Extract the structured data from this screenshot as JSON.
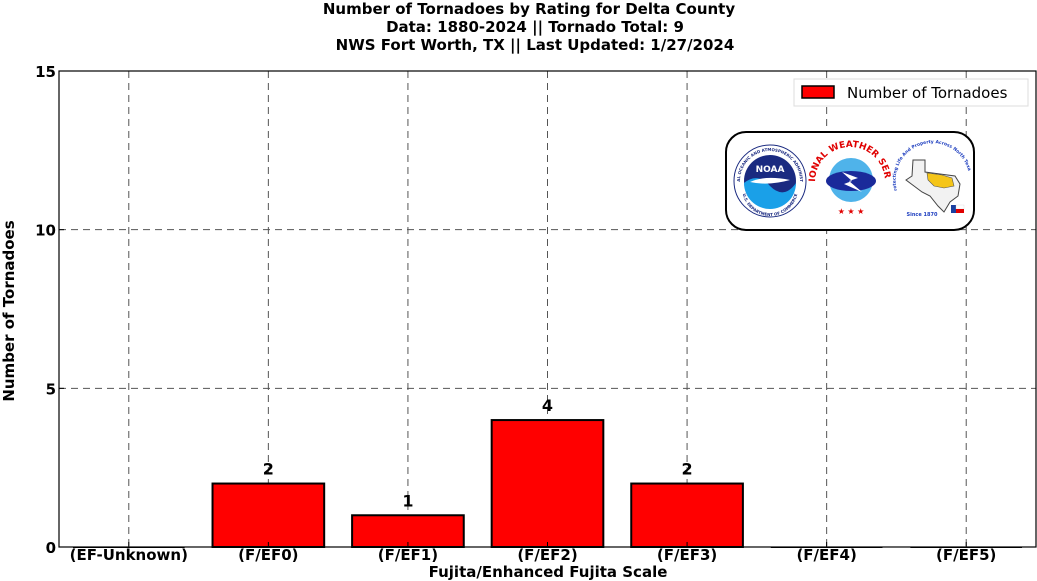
{
  "chart_data": {
    "type": "bar",
    "title_lines": [
      "Number of Tornadoes by Rating for Delta County",
      "Data: 1880-2024 || Tornado Total: 9",
      "NWS Fort Worth, TX || Last Updated: 1/27/2024"
    ],
    "xlabel": "Fujita/Enhanced Fujita Scale",
    "ylabel": "Number of Tornadoes",
    "categories": [
      "(EF-Unknown)",
      "(F/EF0)",
      "(F/EF1)",
      "(F/EF2)",
      "(F/EF3)",
      "(F/EF4)",
      "(F/EF5)"
    ],
    "series": [
      {
        "name": "Number of Tornadoes",
        "values": [
          0,
          2,
          1,
          4,
          2,
          0,
          0
        ],
        "color": "#ff0000",
        "data_labels": [
          "",
          "2",
          "1",
          "4",
          "2",
          "",
          ""
        ]
      }
    ],
    "ylim": [
      0,
      15
    ],
    "yticks": [
      0,
      5,
      10,
      15
    ],
    "grid": true,
    "legend_position": "top-right"
  },
  "logos": {
    "noaa_text": "NOAA",
    "noaa_ring": "NATIONAL OCEANIC AND ATMOSPHERIC ADMINISTRATION",
    "noaa_ring_bottom": "U.S. DEPARTMENT OF COMMERCE",
    "nws_ring": "NATIONAL WEATHER SERVICE",
    "fw_ring": "Protecting Life And Property Across North Texas",
    "fw_since": "Since 1870"
  }
}
